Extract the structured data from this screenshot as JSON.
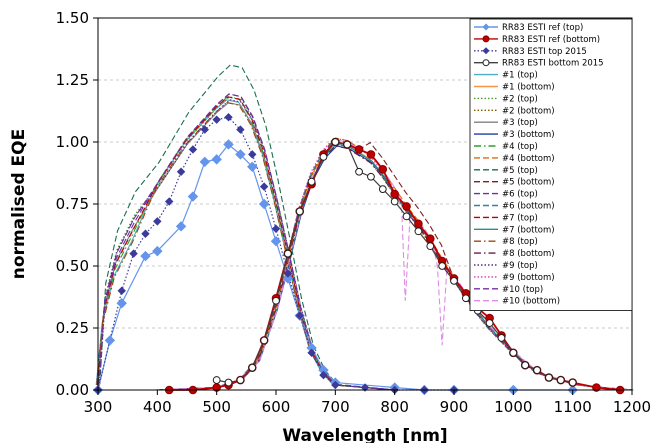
{
  "chart_data": {
    "type": "line",
    "title": "",
    "xlabel": "Wavelength [nm]",
    "ylabel": "normalised EQE",
    "xlim": [
      300,
      1200
    ],
    "ylim": [
      0,
      1.5
    ],
    "xticks": [
      300,
      400,
      500,
      600,
      700,
      800,
      900,
      1000,
      1100,
      1200
    ],
    "yticks": [
      0.0,
      0.25,
      0.5,
      0.75,
      1.0,
      1.25,
      1.5
    ],
    "x_tick_labels": [
      "300",
      "400",
      "500",
      "600",
      "700",
      "800",
      "900",
      "1000",
      "1100",
      "1200"
    ],
    "y_tick_labels": [
      "0.00",
      "0.25",
      "0.50",
      "0.75",
      "1.00",
      "1.25",
      "1.50"
    ],
    "grid": "horizontal dashed",
    "legend_position": "top-right",
    "series": [
      {
        "name": "RR83 ESTI ref (top)",
        "color": "#6495ED",
        "style": "solid",
        "marker": "diamond",
        "x": [
          300,
          320,
          340,
          380,
          400,
          440,
          460,
          480,
          500,
          520,
          540,
          560,
          580,
          600,
          620,
          640,
          660,
          680,
          700,
          800,
          850,
          900,
          1000,
          1100
        ],
        "y": [
          0.0,
          0.2,
          0.35,
          0.54,
          0.56,
          0.66,
          0.78,
          0.92,
          0.93,
          0.99,
          0.95,
          0.9,
          0.75,
          0.6,
          0.45,
          0.3,
          0.17,
          0.08,
          0.03,
          0.01,
          0.0,
          0.0,
          0.0,
          0.0
        ]
      },
      {
        "name": "RR83 ESTI ref (bottom)",
        "color": "#C00000",
        "style": "solid",
        "marker": "circle",
        "x": [
          420,
          460,
          500,
          520,
          540,
          560,
          580,
          600,
          620,
          640,
          660,
          680,
          700,
          720,
          740,
          760,
          780,
          800,
          820,
          840,
          860,
          880,
          900,
          920,
          940,
          960,
          980,
          1000,
          1020,
          1040,
          1060,
          1080,
          1100,
          1140,
          1180
        ],
        "y": [
          0.0,
          0.0,
          0.01,
          0.02,
          0.04,
          0.09,
          0.2,
          0.37,
          0.55,
          0.72,
          0.83,
          0.95,
          1.0,
          0.99,
          0.97,
          0.95,
          0.89,
          0.79,
          0.74,
          0.67,
          0.61,
          0.52,
          0.45,
          0.39,
          0.33,
          0.29,
          0.22,
          0.15,
          0.1,
          0.08,
          0.05,
          0.04,
          0.03,
          0.01,
          0.0
        ]
      },
      {
        "name": "RR83 ESTI top 2015",
        "color": "#3B3B9A",
        "style": "dotted",
        "marker": "diamond",
        "x": [
          300,
          340,
          360,
          380,
          400,
          420,
          440,
          460,
          480,
          500,
          520,
          540,
          560,
          580,
          600,
          620,
          640,
          660,
          680,
          700,
          750,
          800,
          850,
          900
        ],
        "y": [
          0.0,
          0.4,
          0.55,
          0.63,
          0.68,
          0.76,
          0.88,
          0.97,
          1.05,
          1.09,
          1.1,
          1.05,
          0.95,
          0.82,
          0.65,
          0.47,
          0.3,
          0.15,
          0.06,
          0.02,
          0.01,
          0.0,
          0.0,
          0.0
        ]
      },
      {
        "name": "RR83 ESTI bottom 2015",
        "color": "#404040",
        "style": "solid",
        "marker": "open-circle",
        "x": [
          500,
          520,
          540,
          560,
          580,
          600,
          620,
          640,
          660,
          680,
          700,
          720,
          740,
          760,
          780,
          800,
          820,
          840,
          860,
          880,
          900,
          920,
          940,
          960,
          980,
          1000,
          1020,
          1040,
          1060,
          1080,
          1100
        ],
        "y": [
          0.04,
          0.03,
          0.04,
          0.09,
          0.2,
          0.36,
          0.55,
          0.72,
          0.84,
          0.94,
          1.0,
          0.99,
          0.88,
          0.86,
          0.81,
          0.76,
          0.7,
          0.64,
          0.58,
          0.5,
          0.44,
          0.37,
          0.32,
          0.27,
          0.21,
          0.15,
          0.1,
          0.08,
          0.05,
          0.04,
          0.03
        ]
      },
      {
        "name": "#1 (top)",
        "color": "#4BACC6",
        "style": "solid"
      },
      {
        "name": "#1 (bottom)",
        "color": "#F79646",
        "style": "solid"
      },
      {
        "name": "#2 (top)",
        "color": "#4F9A3A",
        "style": "dotted"
      },
      {
        "name": "#2 (bottom)",
        "color": "#7F6000",
        "style": "dotted"
      },
      {
        "name": "#3 (top)",
        "color": "#808080",
        "style": "solid"
      },
      {
        "name": "#3 (bottom)",
        "color": "#1F3F9F",
        "style": "solid"
      },
      {
        "name": "#4 (top)",
        "color": "#2CA02C",
        "style": "dashdot"
      },
      {
        "name": "#4 (bottom)",
        "color": "#E36C09",
        "style": "dashed"
      },
      {
        "name": "#5 (top)",
        "color": "#1B6E4E",
        "style": "dashed"
      },
      {
        "name": "#5 (bottom)",
        "color": "#7F1F1F",
        "style": "dashed"
      },
      {
        "name": "#6 (top)",
        "color": "#7030A0",
        "style": "dashed"
      },
      {
        "name": "#6 (bottom)",
        "color": "#31859C",
        "style": "dashed"
      },
      {
        "name": "#7 (top)",
        "color": "#C00000",
        "style": "dashed"
      },
      {
        "name": "#7 (bottom)",
        "color": "#2E8B8B",
        "style": "solid"
      },
      {
        "name": "#8 (top)",
        "color": "#9E480E",
        "style": "dashdot"
      },
      {
        "name": "#8 (bottom)",
        "color": "#6B1F3F",
        "style": "dashdot"
      },
      {
        "name": "#9 (top)",
        "color": "#5B2C8F",
        "style": "dotted"
      },
      {
        "name": "#9 (bottom)",
        "color": "#D63CB0",
        "style": "dotted"
      },
      {
        "name": "#10 (top)",
        "color": "#7030A0",
        "style": "dashed"
      },
      {
        "name": "#10 (bottom)",
        "color": "#E08BE8",
        "style": "dashed"
      }
    ]
  }
}
